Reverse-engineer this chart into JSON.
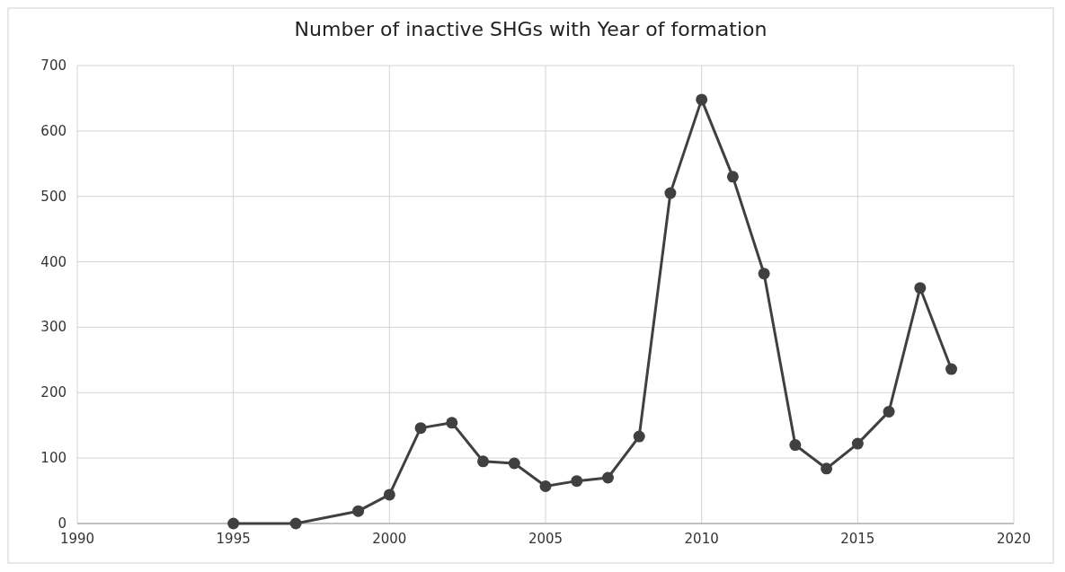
{
  "chart_data": {
    "type": "line",
    "title": "Number of inactive SHGs with Year of formation",
    "x": [
      1995,
      1997,
      1999,
      2000,
      2001,
      2002,
      2003,
      2004,
      2005,
      2006,
      2007,
      2008,
      2009,
      2010,
      2011,
      2012,
      2013,
      2014,
      2015,
      2016,
      2017,
      2018
    ],
    "series": [
      {
        "color": "#404040",
        "values": [
          0,
          0,
          19,
          44,
          146,
          154,
          95,
          92,
          57,
          65,
          70,
          133,
          505,
          648,
          530,
          382,
          120,
          84,
          122,
          171,
          360,
          236
        ]
      }
    ],
    "xlim": [
      1990,
      2020
    ],
    "xticks": [
      1990,
      1995,
      2000,
      2005,
      2010,
      2015,
      2020
    ],
    "ylim": [
      0,
      700
    ],
    "yticks": [
      0,
      100,
      200,
      300,
      400,
      500,
      600,
      700
    ],
    "grid": true,
    "marker": "circle",
    "line_style": "solid"
  }
}
